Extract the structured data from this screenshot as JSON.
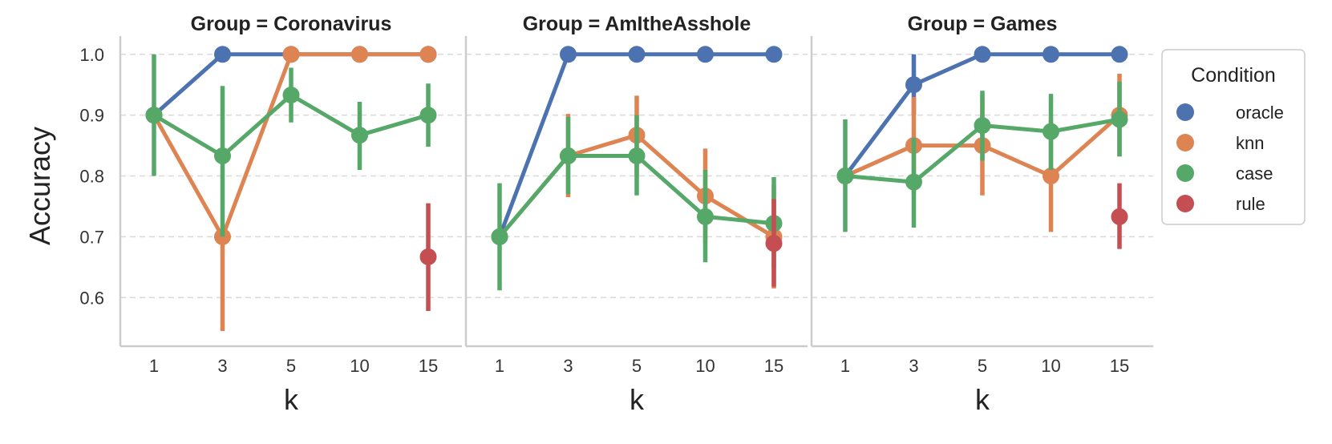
{
  "chart_data": {
    "type": "line",
    "title": "",
    "xlabel": "k",
    "ylabel": "Accuracy",
    "x": [
      "1",
      "3",
      "5",
      "10",
      "15"
    ],
    "ylim": [
      0.52,
      1.03
    ],
    "yticks": [
      0.6,
      0.7,
      0.8,
      0.9,
      1.0
    ],
    "grid": "horizontal-dashed",
    "legend": {
      "title": "Condition",
      "placement": "right",
      "entries": [
        "oracle",
        "knn",
        "case",
        "rule"
      ]
    },
    "colors": {
      "oracle": "#4C72B0",
      "knn": "#DD8452",
      "case": "#55A868",
      "rule": "#C44E52"
    },
    "facets": [
      {
        "title": "Group = Coronavirus",
        "series": [
          {
            "name": "oracle",
            "values": [
              0.9,
              1.0,
              1.0,
              1.0,
              1.0
            ],
            "ci_low": [
              null,
              null,
              null,
              null,
              null
            ],
            "ci_high": [
              null,
              null,
              null,
              null,
              null
            ]
          },
          {
            "name": "knn",
            "values": [
              0.9,
              0.7,
              1.0,
              1.0,
              1.0
            ],
            "ci_low": [
              null,
              0.545,
              null,
              null,
              null
            ],
            "ci_high": [
              null,
              0.7,
              null,
              null,
              null
            ]
          },
          {
            "name": "case",
            "values": [
              0.9,
              0.833,
              0.933,
              0.867,
              0.9
            ],
            "ci_low": [
              0.8,
              0.7,
              0.888,
              0.81,
              0.848
            ],
            "ci_high": [
              1.0,
              0.948,
              0.978,
              0.922,
              0.952
            ]
          },
          {
            "name": "rule",
            "values": [
              null,
              null,
              null,
              null,
              0.667
            ],
            "ci_low": [
              null,
              null,
              null,
              null,
              0.578
            ],
            "ci_high": [
              null,
              null,
              null,
              null,
              0.755
            ]
          }
        ]
      },
      {
        "title": "Group = AmItheAsshole",
        "series": [
          {
            "name": "oracle",
            "values": [
              0.7,
              1.0,
              1.0,
              1.0,
              1.0
            ],
            "ci_low": [
              null,
              null,
              null,
              null,
              null
            ],
            "ci_high": [
              null,
              null,
              null,
              null,
              null
            ]
          },
          {
            "name": "knn",
            "values": [
              0.7,
              0.833,
              0.867,
              0.767,
              0.7
            ],
            "ci_low": [
              null,
              0.765,
              0.8,
              0.69,
              0.615
            ],
            "ci_high": [
              null,
              0.902,
              0.932,
              0.845,
              0.785
            ]
          },
          {
            "name": "case",
            "values": [
              0.7,
              0.833,
              0.833,
              0.733,
              0.722
            ],
            "ci_low": [
              0.612,
              0.77,
              0.768,
              0.658,
              0.648
            ],
            "ci_high": [
              0.788,
              0.897,
              0.9,
              0.81,
              0.798
            ]
          },
          {
            "name": "rule",
            "values": [
              null,
              null,
              null,
              null,
              0.689
            ],
            "ci_low": [
              null,
              null,
              null,
              null,
              0.618
            ],
            "ci_high": [
              null,
              null,
              null,
              null,
              0.762
            ]
          }
        ]
      },
      {
        "title": "Group = Games",
        "series": [
          {
            "name": "oracle",
            "values": [
              0.8,
              0.95,
              1.0,
              1.0,
              1.0
            ],
            "ci_low": [
              null,
              0.9,
              null,
              null,
              null
            ],
            "ci_high": [
              null,
              1.0,
              null,
              null,
              null
            ]
          },
          {
            "name": "knn",
            "values": [
              0.8,
              0.85,
              0.85,
              0.8,
              0.9
            ],
            "ci_low": [
              null,
              0.77,
              0.768,
              0.708,
              0.832
            ],
            "ci_high": [
              null,
              0.93,
              0.932,
              0.892,
              0.968
            ]
          },
          {
            "name": "case",
            "values": [
              0.8,
              0.79,
              0.883,
              0.873,
              0.893
            ],
            "ci_low": [
              0.708,
              0.715,
              0.825,
              0.81,
              0.832
            ],
            "ci_high": [
              0.893,
              0.863,
              0.94,
              0.935,
              0.955
            ]
          },
          {
            "name": "rule",
            "values": [
              null,
              null,
              null,
              null,
              0.733
            ],
            "ci_low": [
              null,
              null,
              null,
              null,
              0.68
            ],
            "ci_high": [
              null,
              null,
              null,
              null,
              0.788
            ]
          }
        ]
      }
    ]
  }
}
